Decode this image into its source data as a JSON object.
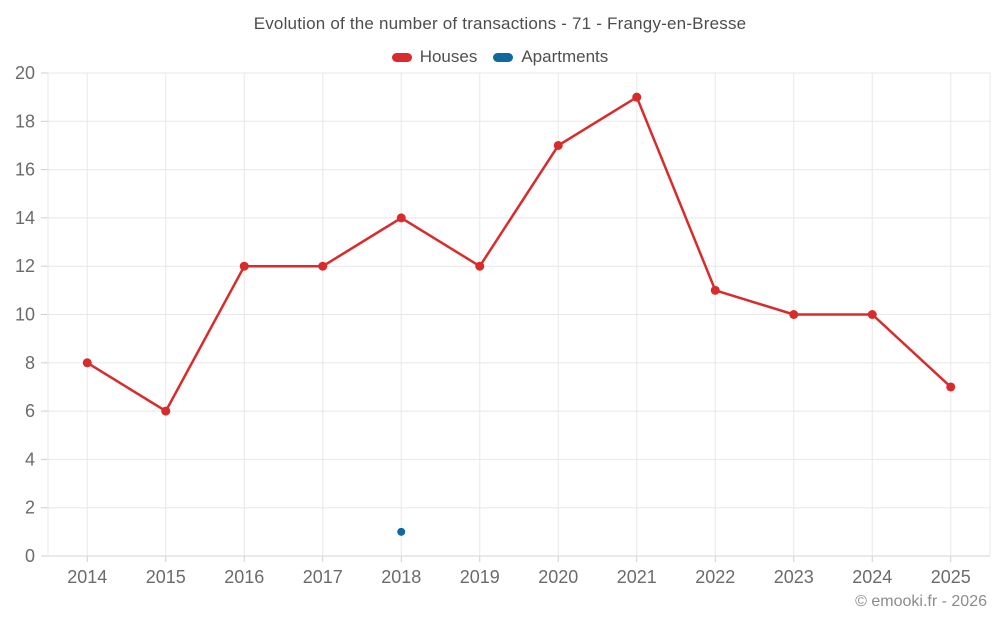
{
  "title": "Evolution of the number of transactions - 71 - Frangy-en-Bresse",
  "footer": "© emooki.fr - 2026",
  "colors": {
    "houses": "#d92b2b",
    "apartments": "#10689f",
    "grid": "#e8e8e8",
    "frame": "#d6d6d6",
    "tick": "#cfcfcf",
    "axis_text": "#6b6b6b"
  },
  "chart_data": {
    "type": "line",
    "title": "Evolution of the number of transactions - 71 - Frangy-en-Bresse",
    "categories": [
      "2014",
      "2015",
      "2016",
      "2017",
      "2018",
      "2019",
      "2020",
      "2021",
      "2022",
      "2023",
      "2024",
      "2025"
    ],
    "series": [
      {
        "name": "Houses",
        "color": "#d92b2b",
        "marker_radius": 4.5,
        "values": [
          8,
          6,
          12,
          12,
          14,
          12,
          17,
          19,
          11,
          10,
          10,
          7
        ]
      },
      {
        "name": "Apartments",
        "color": "#10689f",
        "marker_radius": 4,
        "values": [
          null,
          null,
          null,
          null,
          1,
          null,
          null,
          null,
          null,
          null,
          null,
          null
        ]
      }
    ],
    "xlabel": "",
    "ylabel": "",
    "ylim": [
      0,
      20
    ],
    "ytick_step": 2,
    "grid": true,
    "legend_position": "top"
  }
}
